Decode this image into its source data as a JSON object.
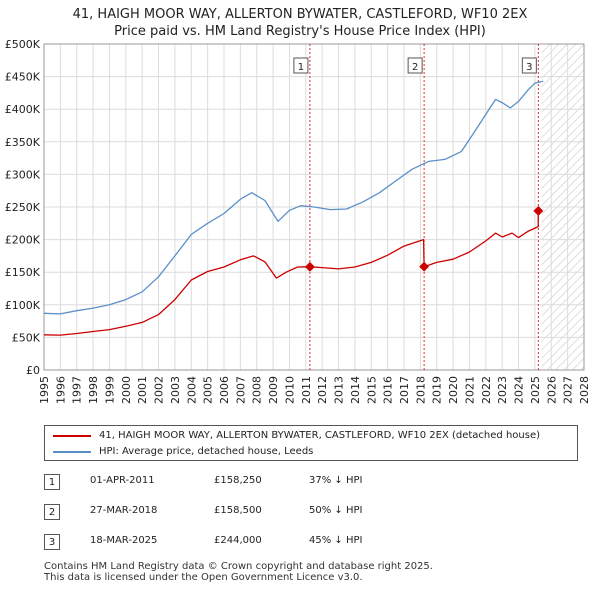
{
  "chart_data": {
    "type": "line",
    "title": "41, HAIGH MOOR WAY, ALLERTON BYWATER, CASTLEFORD, WF10 2EX",
    "subtitle": "Price paid vs. HM Land Registry's House Price Index (HPI)",
    "xlim": [
      1995,
      2028
    ],
    "ylim": [
      0,
      500000
    ],
    "x_ticks": [
      "1995",
      "1996",
      "1997",
      "1998",
      "1999",
      "2000",
      "2001",
      "2002",
      "2003",
      "2004",
      "2005",
      "2006",
      "2007",
      "2008",
      "2009",
      "2010",
      "2011",
      "2012",
      "2013",
      "2014",
      "2015",
      "2016",
      "2017",
      "2018",
      "2019",
      "2020",
      "2021",
      "2022",
      "2023",
      "2024",
      "2025",
      "2026",
      "2027",
      "2028"
    ],
    "y_ticks": [
      {
        "value": 0,
        "label": "£0"
      },
      {
        "value": 50000,
        "label": "£50K"
      },
      {
        "value": 100000,
        "label": "£100K"
      },
      {
        "value": 150000,
        "label": "£150K"
      },
      {
        "value": 200000,
        "label": "£200K"
      },
      {
        "value": 250000,
        "label": "£250K"
      },
      {
        "value": 300000,
        "label": "£300K"
      },
      {
        "value": 350000,
        "label": "£350K"
      },
      {
        "value": 400000,
        "label": "£400K"
      },
      {
        "value": 450000,
        "label": "£450K"
      },
      {
        "value": 500000,
        "label": "£500K"
      }
    ],
    "grid": true,
    "forecast_start": 2025.4,
    "series": [
      {
        "name": "41, HAIGH MOOR WAY, ALLERTON BYWATER, CASTLEFORD, WF10 2EX (detached house)",
        "color": "#cc0000",
        "points": [
          [
            1995.0,
            54000
          ],
          [
            1996.0,
            53500
          ],
          [
            1997.0,
            56000
          ],
          [
            1998.0,
            59000
          ],
          [
            1999.0,
            62000
          ],
          [
            2000.0,
            67000
          ],
          [
            2001.0,
            73000
          ],
          [
            2002.0,
            85000
          ],
          [
            2003.0,
            108000
          ],
          [
            2004.0,
            138000
          ],
          [
            2005.0,
            151000
          ],
          [
            2006.0,
            158000
          ],
          [
            2007.0,
            169000
          ],
          [
            2007.8,
            175000
          ],
          [
            2008.5,
            166000
          ],
          [
            2009.2,
            141000
          ],
          [
            2009.8,
            150000
          ],
          [
            2010.5,
            158000
          ],
          [
            2011.25,
            158250
          ],
          [
            2012.0,
            157000
          ],
          [
            2013.0,
            155000
          ],
          [
            2014.0,
            158000
          ],
          [
            2015.0,
            165000
          ],
          [
            2016.0,
            176000
          ],
          [
            2017.0,
            190000
          ],
          [
            2018.2,
            200000
          ],
          [
            2018.23,
            158500
          ],
          [
            2019.0,
            165000
          ],
          [
            2020.0,
            170000
          ],
          [
            2021.0,
            181000
          ],
          [
            2022.0,
            198000
          ],
          [
            2022.6,
            210000
          ],
          [
            2023.0,
            204000
          ],
          [
            2023.6,
            210000
          ],
          [
            2024.0,
            203000
          ],
          [
            2024.6,
            213000
          ],
          [
            2025.2,
            220000
          ],
          [
            2025.21,
            244000
          ]
        ]
      },
      {
        "name": "HPI: Average price, detached house, Leeds",
        "color": "#5b8fc9",
        "points": [
          [
            1995.0,
            87000
          ],
          [
            1996.0,
            86000
          ],
          [
            1997.0,
            91000
          ],
          [
            1998.0,
            95000
          ],
          [
            1999.0,
            100000
          ],
          [
            2000.0,
            108000
          ],
          [
            2001.0,
            120000
          ],
          [
            2002.0,
            143000
          ],
          [
            2003.0,
            175000
          ],
          [
            2004.0,
            208000
          ],
          [
            2005.0,
            225000
          ],
          [
            2006.0,
            240000
          ],
          [
            2007.0,
            262000
          ],
          [
            2007.7,
            272000
          ],
          [
            2008.5,
            260000
          ],
          [
            2009.3,
            228000
          ],
          [
            2010.0,
            245000
          ],
          [
            2010.7,
            252000
          ],
          [
            2011.5,
            250000
          ],
          [
            2012.5,
            246000
          ],
          [
            2013.5,
            247000
          ],
          [
            2014.5,
            258000
          ],
          [
            2015.5,
            272000
          ],
          [
            2016.5,
            290000
          ],
          [
            2017.5,
            308000
          ],
          [
            2018.5,
            320000
          ],
          [
            2019.5,
            323000
          ],
          [
            2020.5,
            335000
          ],
          [
            2021.3,
            365000
          ],
          [
            2022.0,
            392000
          ],
          [
            2022.6,
            415000
          ],
          [
            2023.0,
            410000
          ],
          [
            2023.5,
            402000
          ],
          [
            2024.0,
            412000
          ],
          [
            2024.6,
            430000
          ],
          [
            2025.0,
            440000
          ],
          [
            2025.5,
            443000
          ]
        ]
      }
    ],
    "markers": [
      {
        "label": "1",
        "x": 2011.25,
        "y": 158250
      },
      {
        "label": "2",
        "x": 2018.23,
        "y": 158500
      },
      {
        "label": "3",
        "x": 2025.21,
        "y": 244000
      }
    ]
  },
  "legend": {
    "property_label": "41, HAIGH MOOR WAY, ALLERTON BYWATER, CASTLEFORD, WF10 2EX (detached house)",
    "hpi_label": "HPI: Average price, detached house, Leeds",
    "property_color": "#cc0000",
    "hpi_color": "#5b8fc9"
  },
  "sales": [
    {
      "num": "1",
      "date": "01-APR-2011",
      "price": "£158,250",
      "hpi": "37% ↓ HPI"
    },
    {
      "num": "2",
      "date": "27-MAR-2018",
      "price": "£158,500",
      "hpi": "50% ↓ HPI"
    },
    {
      "num": "3",
      "date": "18-MAR-2025",
      "price": "£244,000",
      "hpi": "45% ↓ HPI"
    }
  ],
  "footer": {
    "line1": "Contains HM Land Registry data © Crown copyright and database right 2025.",
    "line2": "This data is licensed under the Open Government Licence v3.0."
  }
}
